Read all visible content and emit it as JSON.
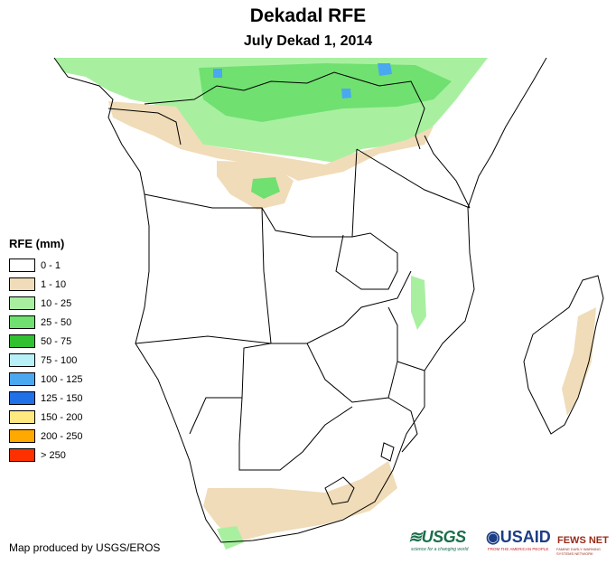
{
  "map": {
    "title": "Dekadal RFE",
    "subtitle": "July Dekad 1, 2014",
    "colors": {
      "land": "#ffffff",
      "border": "#000000",
      "light_rain": "#f0dcb8",
      "moderate_rain": "#a8f0a0",
      "heavy_rain": "#70e070",
      "very_heavy": "#30c030",
      "extreme": "#4aa8f0"
    }
  },
  "legend": {
    "title": "RFE (mm)",
    "items": [
      {
        "label": "0 - 1",
        "color": "#ffffff"
      },
      {
        "label": "1 - 10",
        "color": "#f0dcb8"
      },
      {
        "label": "10 - 25",
        "color": "#a8f0a0"
      },
      {
        "label": "25 - 50",
        "color": "#70e070"
      },
      {
        "label": "50 - 75",
        "color": "#30c030"
      },
      {
        "label": "75 - 100",
        "color": "#b8f0f8"
      },
      {
        "label": "100 - 125",
        "color": "#4aa8f0"
      },
      {
        "label": "125 - 150",
        "color": "#2070e8"
      },
      {
        "label": "150 - 200",
        "color": "#ffe880"
      },
      {
        "label": "200 - 250",
        "color": "#ffa800"
      },
      {
        "label": "> 250",
        "color": "#ff3000"
      }
    ]
  },
  "footer": {
    "credit": "Map produced by USGS/EROS",
    "logos": {
      "usgs": "≋USGS",
      "usgs_tag": "science for a changing world",
      "usaid": "◉USAID",
      "usaid_tag": "FROM THE AMERICAN PEOPLE",
      "fews": "FEWS NET",
      "fews_tag": "FAMINE EARLY WARNING SYSTEMS NETWORK"
    }
  }
}
